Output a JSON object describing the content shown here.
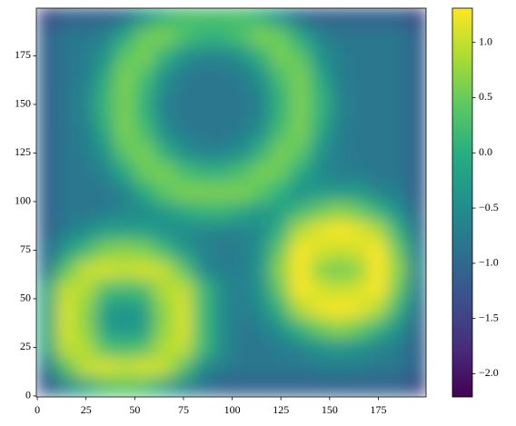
{
  "chart_data": {
    "type": "heatmap",
    "colormap": "viridis",
    "x": [
      5,
      15,
      25,
      35,
      45,
      55,
      65,
      75,
      85,
      95,
      105,
      115,
      125,
      135,
      145,
      155,
      165,
      175,
      185,
      195
    ],
    "y": [
      5,
      15,
      25,
      35,
      45,
      55,
      65,
      75,
      85,
      95,
      105,
      115,
      125,
      135,
      145,
      155,
      165,
      175,
      185,
      195
    ],
    "values": [
      [
        -1.2,
        -0.6,
        -0.1,
        0.3,
        0.4,
        0.3,
        -0.1,
        -0.6,
        -0.9,
        -1.1,
        -1.1,
        -1.1,
        -1.1,
        -1.1,
        -1.1,
        -1.1,
        -1.1,
        -1.1,
        -1.1,
        -1.4
      ],
      [
        -0.8,
        0.4,
        1.0,
        1.1,
        1.0,
        1.1,
        1.0,
        0.4,
        -0.5,
        -0.7,
        -0.8,
        -0.8,
        -0.8,
        -0.8,
        -0.7,
        -0.7,
        -0.7,
        -0.8,
        -0.8,
        -1.1
      ],
      [
        -0.1,
        1.0,
        0.9,
        0.3,
        0.2,
        0.3,
        0.9,
        1.0,
        0.2,
        -0.5,
        -0.8,
        -0.8,
        -0.7,
        -0.6,
        -0.4,
        -0.3,
        -0.4,
        -0.6,
        -0.7,
        -1.1
      ],
      [
        -0.1,
        1.1,
        0.7,
        -0.2,
        -0.4,
        -0.2,
        0.7,
        1.1,
        0.2,
        -0.5,
        -0.8,
        -0.7,
        -0.4,
        0.1,
        0.5,
        0.7,
        0.5,
        0.1,
        -0.4,
        -1.0
      ],
      [
        -0.1,
        1.1,
        0.7,
        -0.2,
        -0.4,
        -0.2,
        0.7,
        1.1,
        0.2,
        -0.5,
        -0.7,
        -0.5,
        0.1,
        0.9,
        1.2,
        1.3,
        1.2,
        0.9,
        0.1,
        -0.9
      ],
      [
        -0.1,
        1.0,
        0.9,
        0.3,
        0.2,
        0.3,
        0.9,
        1.0,
        0.2,
        -0.5,
        -0.7,
        -0.4,
        0.5,
        1.3,
        1.1,
        1.0,
        1.1,
        1.3,
        0.5,
        -0.7
      ],
      [
        -0.8,
        0.4,
        1.0,
        1.1,
        1.0,
        1.1,
        1.0,
        0.4,
        -0.5,
        -0.7,
        -0.7,
        -0.3,
        0.7,
        1.3,
        0.7,
        0.5,
        0.7,
        1.3,
        0.7,
        -0.6
      ],
      [
        -0.9,
        -0.3,
        0.2,
        0.6,
        0.7,
        0.6,
        0.2,
        -0.3,
        -0.6,
        -0.8,
        -0.7,
        -0.4,
        0.5,
        1.3,
        1.1,
        1.0,
        1.1,
        1.3,
        0.5,
        -0.7
      ],
      [
        -1.1,
        -0.7,
        -0.5,
        -0.2,
        -0.2,
        -0.2,
        -0.4,
        -0.5,
        -0.6,
        -0.6,
        -0.6,
        -0.5,
        0.1,
        0.9,
        1.2,
        1.3,
        1.2,
        0.9,
        0.1,
        -0.9
      ],
      [
        -1.1,
        -0.8,
        -0.8,
        -0.7,
        -0.6,
        -0.5,
        -0.3,
        -0.1,
        0.1,
        0.1,
        -0.1,
        -0.3,
        -0.2,
        0.2,
        0.5,
        0.7,
        0.5,
        0.1,
        -0.4,
        -1.0
      ],
      [
        -1.1,
        -0.8,
        -0.8,
        -0.8,
        -0.6,
        -0.1,
        0.4,
        0.6,
        0.6,
        0.6,
        0.6,
        0.4,
        0.0,
        -0.4,
        -0.3,
        -0.3,
        -0.3,
        -0.6,
        -0.7,
        -1.1
      ],
      [
        -1.1,
        -0.8,
        -0.8,
        -0.6,
        -0.1,
        0.5,
        0.6,
        0.3,
        0.1,
        0.1,
        0.3,
        0.6,
        0.5,
        -0.1,
        -0.5,
        -0.7,
        -0.7,
        -0.8,
        -0.8,
        -1.1
      ],
      [
        -1.1,
        -0.8,
        -0.7,
        -0.4,
        0.4,
        0.6,
        0.1,
        -0.4,
        -0.6,
        -0.6,
        -0.4,
        0.1,
        0.6,
        0.4,
        -0.4,
        -0.7,
        -0.8,
        -0.8,
        -0.8,
        -1.1
      ],
      [
        -1.1,
        -0.8,
        -0.7,
        -0.1,
        0.6,
        0.3,
        -0.4,
        -0.7,
        -0.8,
        -0.8,
        -0.7,
        -0.4,
        0.3,
        0.6,
        -0.1,
        -0.7,
        -0.8,
        -0.8,
        -0.8,
        -1.1
      ],
      [
        -1.1,
        -0.8,
        -0.6,
        0.1,
        0.6,
        0.1,
        -0.6,
        -0.8,
        -0.8,
        -0.8,
        -0.8,
        -0.6,
        0.1,
        0.6,
        0.1,
        -0.6,
        -0.8,
        -0.8,
        -0.8,
        -1.1
      ],
      [
        -1.1,
        -0.8,
        -0.6,
        0.1,
        0.6,
        0.1,
        -0.6,
        -0.8,
        -0.8,
        -0.8,
        -0.8,
        -0.6,
        0.1,
        0.6,
        0.1,
        -0.6,
        -0.8,
        -0.8,
        -0.8,
        -1.1
      ],
      [
        -1.1,
        -0.8,
        -0.7,
        -0.1,
        0.6,
        0.3,
        -0.4,
        -0.7,
        -0.8,
        -0.8,
        -0.7,
        -0.4,
        0.3,
        0.6,
        -0.1,
        -0.7,
        -0.8,
        -0.8,
        -0.8,
        -1.1
      ],
      [
        -1.1,
        -0.8,
        -0.7,
        -0.4,
        0.4,
        0.6,
        0.1,
        -0.4,
        -0.6,
        -0.6,
        -0.4,
        0.1,
        0.6,
        0.4,
        -0.4,
        -0.7,
        -0.8,
        -0.8,
        -0.8,
        -1.1
      ],
      [
        -1.1,
        -0.8,
        -0.8,
        -0.6,
        -0.1,
        0.5,
        0.6,
        0.3,
        0.1,
        0.1,
        0.3,
        0.6,
        0.5,
        -0.1,
        -0.6,
        -0.8,
        -0.8,
        -0.8,
        -0.8,
        -1.1
      ],
      [
        -1.4,
        -1.1,
        -1.1,
        -1.1,
        -0.9,
        -0.4,
        0.1,
        0.3,
        0.3,
        0.3,
        0.3,
        0.1,
        -0.4,
        -0.9,
        -1.1,
        -1.1,
        -1.1,
        -1.1,
        -1.1,
        -1.4
      ]
    ],
    "xlim": [
      -0.5,
      199.5
    ],
    "ylim": [
      -0.5,
      199.5
    ],
    "xticks": [
      0,
      25,
      50,
      75,
      100,
      125,
      150,
      175
    ],
    "yticks": [
      0,
      25,
      50,
      75,
      100,
      125,
      150,
      175
    ],
    "clim": [
      -2.21,
      1.31
    ],
    "cticks": [
      {
        "value": -2.0,
        "label": "−2.0"
      },
      {
        "value": -1.5,
        "label": "−1.5"
      },
      {
        "value": -1.0,
        "label": "−1.0"
      },
      {
        "value": -0.5,
        "label": "−0.5"
      },
      {
        "value": 0.0,
        "label": "0.0"
      },
      {
        "value": 0.5,
        "label": "0.5"
      },
      {
        "value": 1.0,
        "label": "1.0"
      }
    ]
  }
}
